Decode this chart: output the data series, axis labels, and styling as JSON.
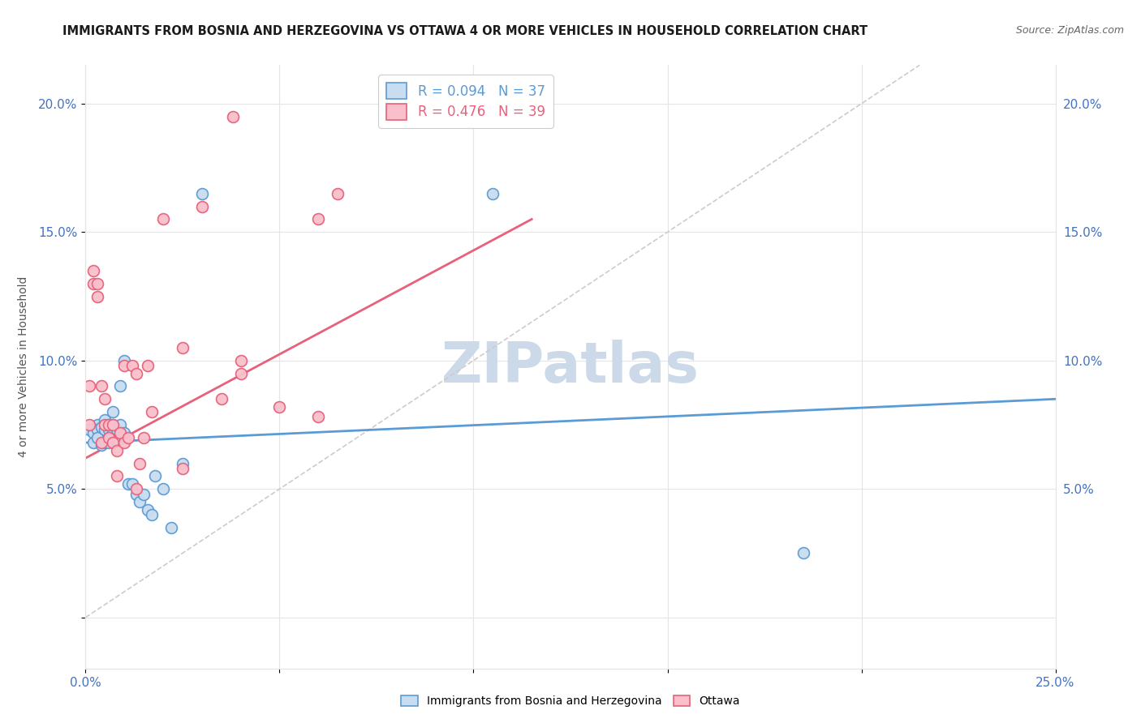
{
  "title": "IMMIGRANTS FROM BOSNIA AND HERZEGOVINA VS OTTAWA 4 OR MORE VEHICLES IN HOUSEHOLD CORRELATION CHART",
  "source": "Source: ZipAtlas.com",
  "ylabel": "4 or more Vehicles in Household",
  "xlim": [
    0.0,
    0.25
  ],
  "ylim": [
    -0.02,
    0.215
  ],
  "xtick_positions": [
    0.0,
    0.05,
    0.1,
    0.15,
    0.2,
    0.25
  ],
  "xtick_labels": [
    "0.0%",
    "",
    "",
    "",
    "",
    "25.0%"
  ],
  "ytick_positions": [
    0.0,
    0.05,
    0.1,
    0.15,
    0.2
  ],
  "ytick_labels": [
    "",
    "5.0%",
    "10.0%",
    "15.0%",
    "20.0%"
  ],
  "legend_r1": "0.094",
  "legend_n1": "37",
  "legend_r2": "0.476",
  "legend_n2": "39",
  "watermark": "ZIPatlas",
  "blue_scatter_x": [
    0.001,
    0.002,
    0.002,
    0.003,
    0.003,
    0.003,
    0.004,
    0.004,
    0.005,
    0.005,
    0.005,
    0.006,
    0.006,
    0.006,
    0.007,
    0.007,
    0.007,
    0.008,
    0.008,
    0.009,
    0.009,
    0.01,
    0.01,
    0.011,
    0.012,
    0.013,
    0.014,
    0.015,
    0.016,
    0.017,
    0.018,
    0.02,
    0.022,
    0.025,
    0.03,
    0.105,
    0.185
  ],
  "blue_scatter_y": [
    0.073,
    0.072,
    0.068,
    0.075,
    0.073,
    0.07,
    0.074,
    0.067,
    0.077,
    0.073,
    0.068,
    0.075,
    0.073,
    0.068,
    0.08,
    0.075,
    0.072,
    0.073,
    0.069,
    0.075,
    0.09,
    0.072,
    0.1,
    0.052,
    0.052,
    0.048,
    0.045,
    0.048,
    0.042,
    0.04,
    0.055,
    0.05,
    0.035,
    0.06,
    0.165,
    0.165,
    0.025
  ],
  "pink_scatter_x": [
    0.001,
    0.001,
    0.002,
    0.002,
    0.003,
    0.003,
    0.004,
    0.004,
    0.005,
    0.005,
    0.006,
    0.006,
    0.007,
    0.007,
    0.008,
    0.008,
    0.009,
    0.01,
    0.01,
    0.011,
    0.012,
    0.013,
    0.013,
    0.014,
    0.015,
    0.016,
    0.017,
    0.02,
    0.025,
    0.03,
    0.035,
    0.038,
    0.05,
    0.06,
    0.06,
    0.065,
    0.04,
    0.04,
    0.025
  ],
  "pink_scatter_y": [
    0.09,
    0.075,
    0.135,
    0.13,
    0.125,
    0.13,
    0.09,
    0.068,
    0.085,
    0.075,
    0.07,
    0.075,
    0.075,
    0.068,
    0.065,
    0.055,
    0.072,
    0.098,
    0.068,
    0.07,
    0.098,
    0.095,
    0.05,
    0.06,
    0.07,
    0.098,
    0.08,
    0.155,
    0.105,
    0.16,
    0.085,
    0.195,
    0.082,
    0.155,
    0.078,
    0.165,
    0.1,
    0.095,
    0.058
  ],
  "blue_line_x": [
    0.0,
    0.25
  ],
  "blue_line_y": [
    0.068,
    0.085
  ],
  "pink_line_x": [
    0.0,
    0.115
  ],
  "pink_line_y": [
    0.062,
    0.155
  ],
  "dashed_line_x": [
    0.0,
    0.215
  ],
  "dashed_line_y": [
    0.0,
    0.215
  ],
  "blue_color": "#5b9bd5",
  "blue_fill": "#c9ddf0",
  "pink_color": "#e8607a",
  "pink_fill": "#f9c0cc",
  "dashed_color": "#cccccc",
  "grid_color": "#e5e5e5",
  "background_color": "#ffffff",
  "title_fontsize": 10.5,
  "source_fontsize": 9,
  "watermark_color": "#ccd9e8",
  "watermark_fontsize": 50,
  "tick_color": "#4472c4",
  "ylabel_color": "#555555"
}
